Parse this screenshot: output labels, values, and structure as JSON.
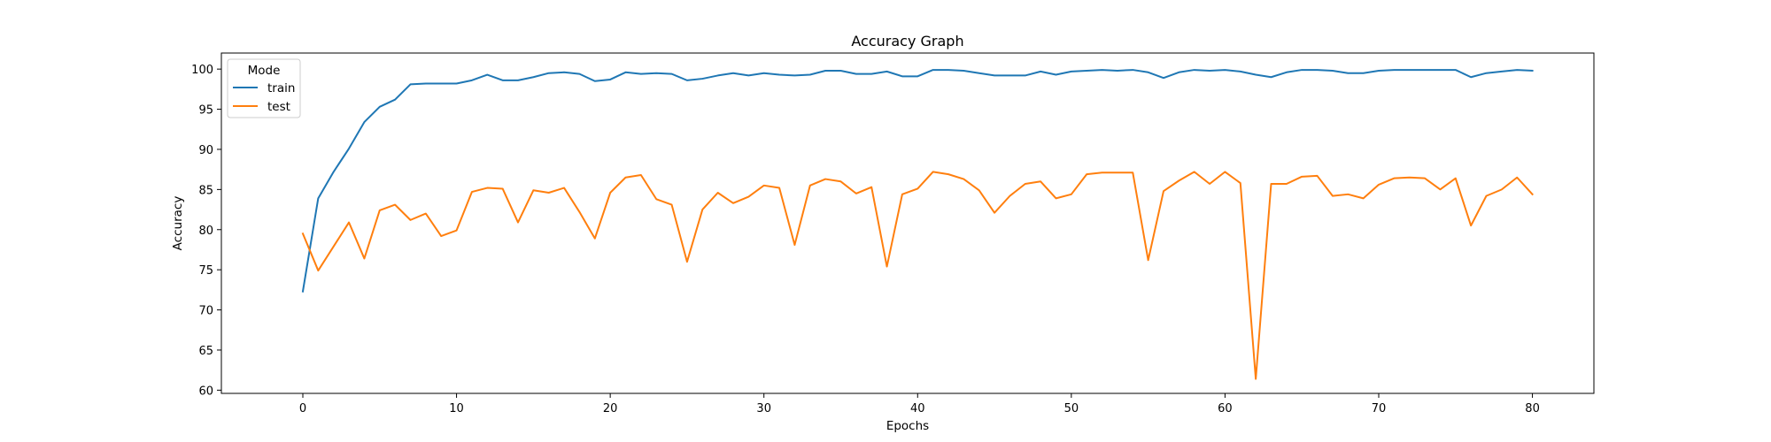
{
  "chart_data": {
    "type": "line",
    "title": "Accuracy Graph",
    "xlabel": "Epochs",
    "ylabel": "Accuracy",
    "xlim": [
      -5.3,
      84.0
    ],
    "ylim": [
      59.6,
      102.0
    ],
    "xticks": [
      0,
      10,
      20,
      30,
      40,
      50,
      60,
      70,
      80
    ],
    "yticks": [
      60,
      65,
      70,
      75,
      80,
      85,
      90,
      95,
      100
    ],
    "grid": false,
    "legend": {
      "title": "Mode",
      "placement": "top-left"
    },
    "x": [
      0,
      1,
      2,
      3,
      4,
      5,
      6,
      7,
      8,
      9,
      10,
      11,
      12,
      13,
      14,
      15,
      16,
      17,
      18,
      19,
      20,
      21,
      22,
      23,
      24,
      25,
      26,
      27,
      28,
      29,
      30,
      31,
      32,
      33,
      34,
      35,
      36,
      37,
      38,
      39,
      40,
      41,
      42,
      43,
      44,
      45,
      46,
      47,
      48,
      49,
      50,
      51,
      52,
      53,
      54,
      55,
      56,
      57,
      58,
      59,
      60,
      61,
      62,
      63,
      64,
      65,
      66,
      67,
      68,
      69,
      70,
      71,
      72,
      73,
      74,
      75,
      76,
      77,
      78,
      79,
      80
    ],
    "series": [
      {
        "name": "train",
        "color": "#1f77b4",
        "values": [
          72.3,
          83.9,
          87.2,
          90.1,
          93.4,
          95.3,
          96.2,
          98.1,
          98.2,
          98.2,
          98.2,
          98.6,
          99.3,
          98.6,
          98.6,
          99.0,
          99.5,
          99.6,
          99.4,
          98.5,
          98.7,
          99.6,
          99.4,
          99.5,
          99.4,
          98.6,
          98.8,
          99.2,
          99.5,
          99.2,
          99.5,
          99.3,
          99.2,
          99.3,
          99.8,
          99.8,
          99.4,
          99.4,
          99.7,
          99.1,
          99.1,
          99.9,
          99.9,
          99.8,
          99.5,
          99.2,
          99.2,
          99.2,
          99.7,
          99.3,
          99.7,
          99.8,
          99.9,
          99.8,
          99.9,
          99.6,
          98.9,
          99.6,
          99.9,
          99.8,
          99.9,
          99.7,
          99.3,
          99.0,
          99.6,
          99.9,
          99.9,
          99.8,
          99.5,
          99.5,
          99.8,
          99.9,
          99.9,
          99.9,
          99.9,
          99.9,
          99.0,
          99.5,
          99.7,
          99.9,
          99.8
        ]
      },
      {
        "name": "test",
        "color": "#ff7f0e",
        "values": [
          79.5,
          74.9,
          77.9,
          80.9,
          76.4,
          82.4,
          83.1,
          81.2,
          82.0,
          79.2,
          79.9,
          84.7,
          85.2,
          85.1,
          80.9,
          84.9,
          84.6,
          85.2,
          82.2,
          78.9,
          84.6,
          86.5,
          86.8,
          83.8,
          83.1,
          76.0,
          82.5,
          84.6,
          83.3,
          84.1,
          85.5,
          85.2,
          78.1,
          85.5,
          86.3,
          86.0,
          84.5,
          85.3,
          75.4,
          84.4,
          85.1,
          87.2,
          86.9,
          86.3,
          84.9,
          82.1,
          84.2,
          85.7,
          86.0,
          83.9,
          84.4,
          86.9,
          87.1,
          87.1,
          87.1,
          76.2,
          84.8,
          86.1,
          87.2,
          85.7,
          87.2,
          85.8,
          61.4,
          85.7,
          85.7,
          86.6,
          86.7,
          84.2,
          84.4,
          83.9,
          85.6,
          86.4,
          86.5,
          86.4,
          85.0,
          86.4,
          80.5,
          84.2,
          85.0,
          86.5,
          84.4
        ]
      }
    ]
  }
}
